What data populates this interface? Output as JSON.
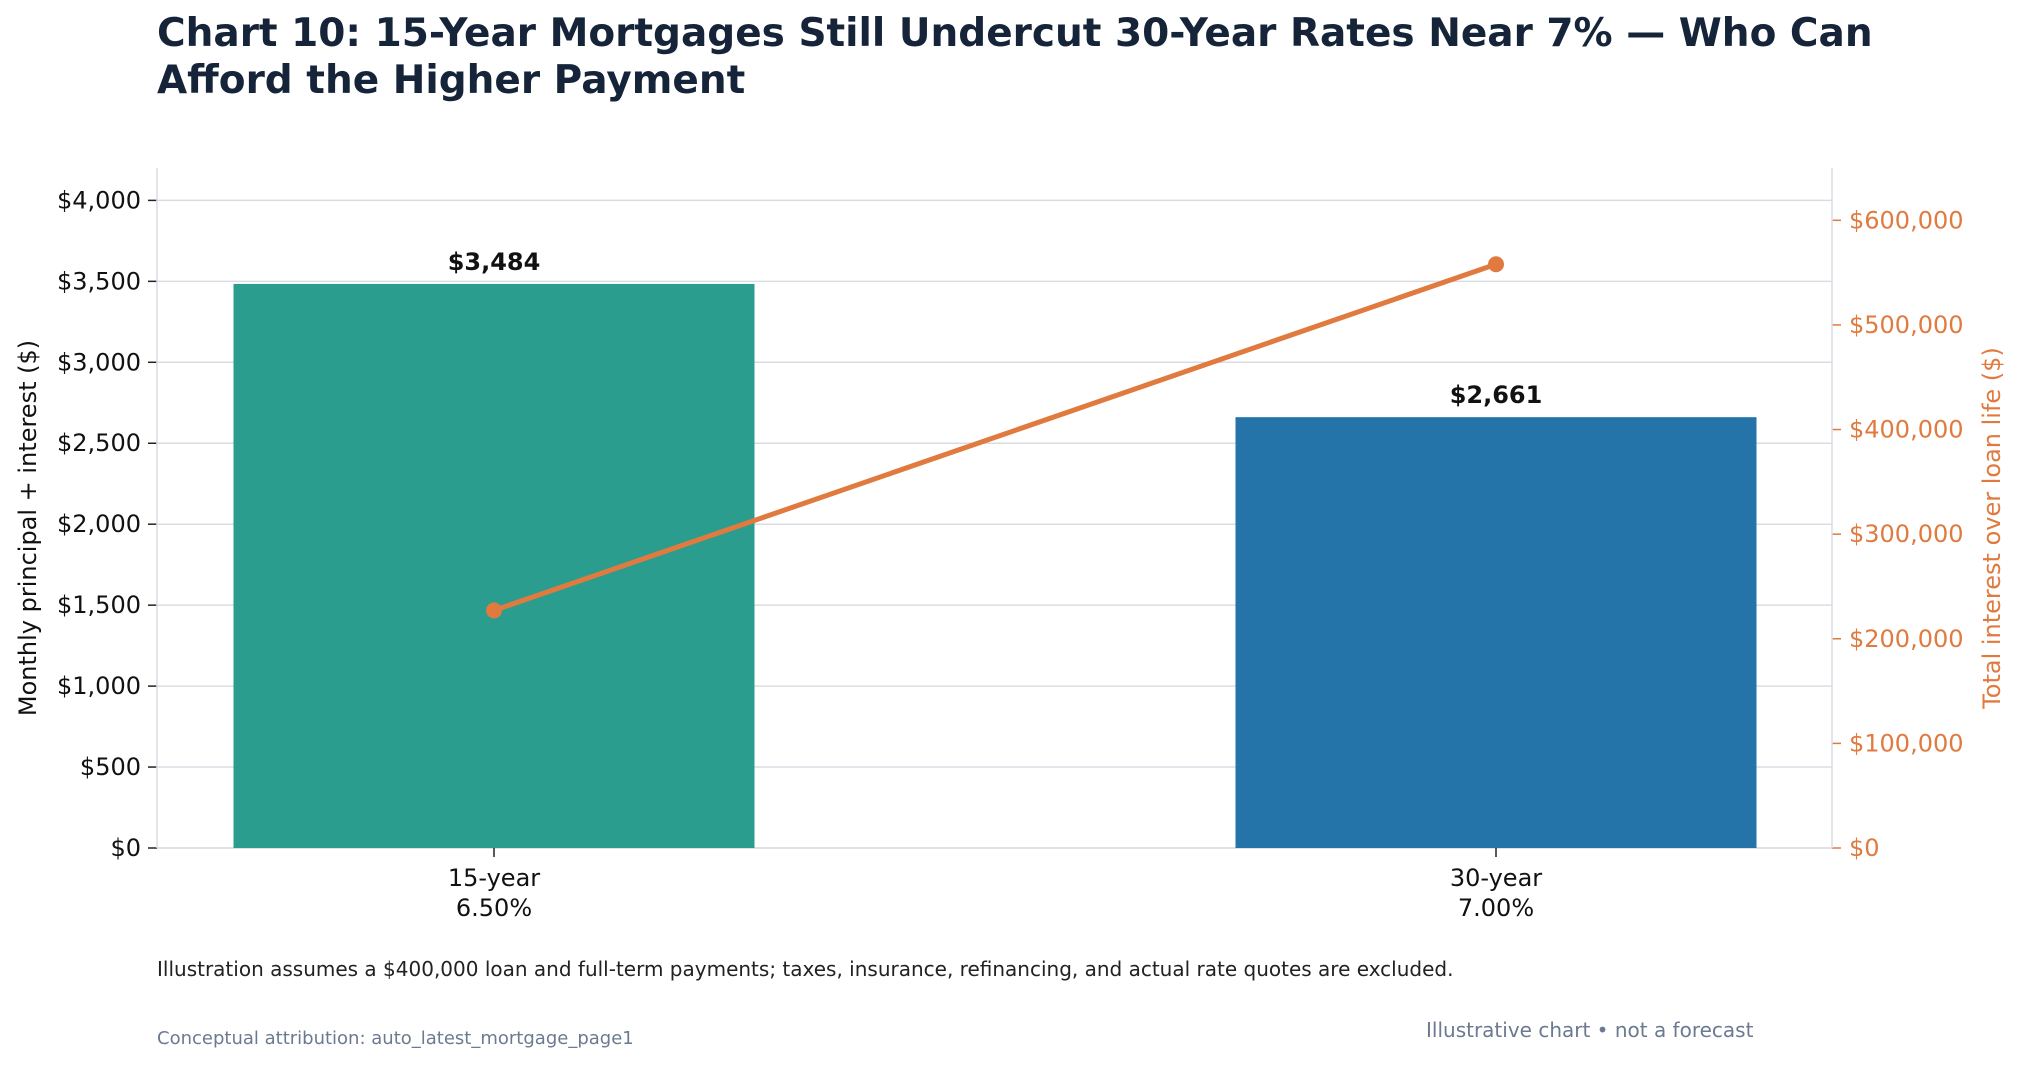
{
  "chart_data": {
    "type": "bar",
    "title": "Chart 10: 15-Year Mortgages Still Undercut 30-Year Rates Near 7% — Who Can Afford the Higher Payment",
    "categories": [
      {
        "term": "15-year",
        "rate": "6.50%"
      },
      {
        "term": "30-year",
        "rate": "7.00%"
      }
    ],
    "series": [
      {
        "name": "Monthly principal + interest ($)",
        "kind": "bar",
        "axis": "left",
        "values": [
          3484,
          2661
        ],
        "value_labels": [
          "$3,484",
          "$2,661"
        ],
        "colors": [
          "#2a9d8f",
          "#2474a9"
        ]
      },
      {
        "name": "Total interest over loan life ($)",
        "kind": "line",
        "axis": "right",
        "values": [
          227100,
          558000
        ],
        "color": "#e07a3f"
      }
    ],
    "ylabel_left": "Monthly principal + interest ($)",
    "ylabel_right": "Total interest over loan life ($)",
    "ylim_left": [
      0,
      4200
    ],
    "ylim_right": [
      0,
      650000
    ],
    "yticks_left": [
      {
        "value": 0,
        "label": "$0"
      },
      {
        "value": 500,
        "label": "$500"
      },
      {
        "value": 1000,
        "label": "$1,000"
      },
      {
        "value": 1500,
        "label": "$1,500"
      },
      {
        "value": 2000,
        "label": "$2,000"
      },
      {
        "value": 2500,
        "label": "$2,500"
      },
      {
        "value": 3000,
        "label": "$3,000"
      },
      {
        "value": 3500,
        "label": "$3,500"
      },
      {
        "value": 4000,
        "label": "$4,000"
      }
    ],
    "yticks_right": [
      {
        "value": 0,
        "label": "$0"
      },
      {
        "value": 100000,
        "label": "$100,000"
      },
      {
        "value": 200000,
        "label": "$200,000"
      },
      {
        "value": 300000,
        "label": "$300,000"
      },
      {
        "value": 400000,
        "label": "$400,000"
      },
      {
        "value": 500000,
        "label": "$500,000"
      },
      {
        "value": 600000,
        "label": "$600,000"
      }
    ],
    "grid": true
  },
  "footnote": "Illustration assumes a $400,000 loan and full-term payments; taxes, insurance, refinancing, and actual rate quotes are excluded.",
  "attribution": "Conceptual attribution: auto_latest_mortgage_page1",
  "disclaimer": "Illustrative chart • not a forecast"
}
